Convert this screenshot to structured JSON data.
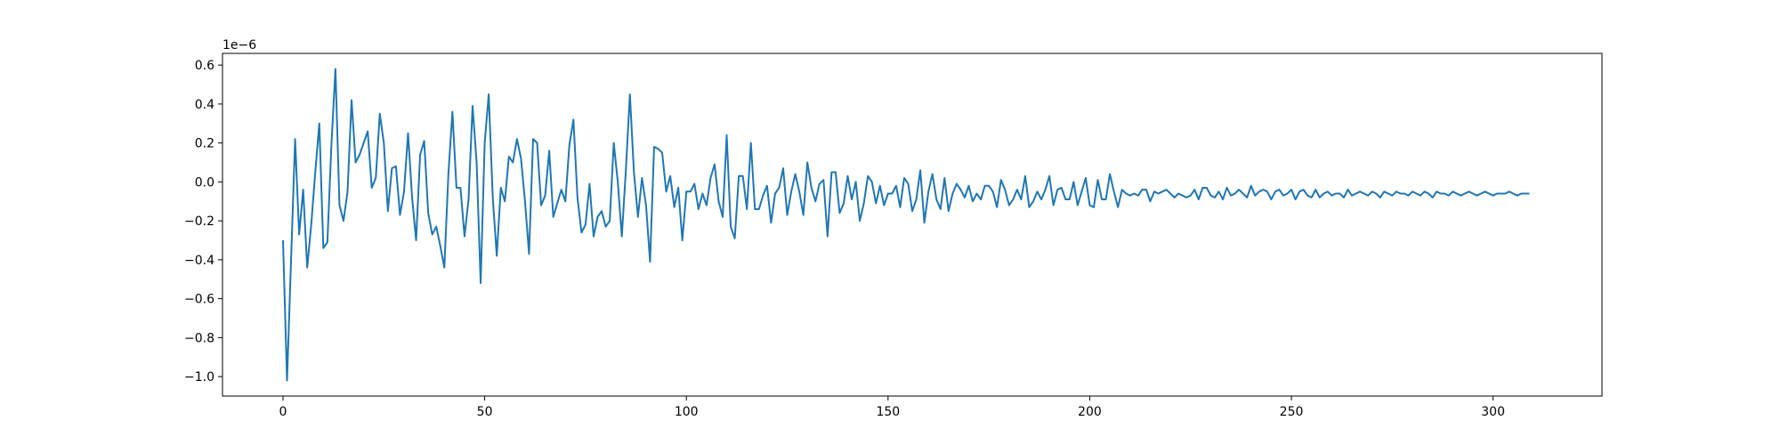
{
  "chart_data": {
    "type": "line",
    "title": "",
    "xlabel": "",
    "ylabel": "",
    "y_scale_note": "1e−6",
    "xlim": [
      -15,
      327
    ],
    "ylim": [
      -1.1,
      0.66
    ],
    "x_ticks": [
      0,
      50,
      100,
      150,
      200,
      250,
      300
    ],
    "y_ticks": [
      -1.0,
      -0.8,
      -0.6,
      -0.4,
      -0.2,
      0.0,
      0.2,
      0.4,
      0.6
    ],
    "y_tick_labels": [
      "−1.0",
      "−0.8",
      "−0.6",
      "−0.4",
      "−0.2",
      "0.0",
      "0.2",
      "0.4",
      "0.6"
    ],
    "grid": false,
    "legend": "none",
    "series": [
      {
        "color": "#1f77b4",
        "x_start": 0,
        "x_step": 1,
        "values": [
          -0.3,
          -1.02,
          -0.4,
          0.22,
          -0.27,
          -0.04,
          -0.44,
          -0.22,
          0.05,
          0.3,
          -0.34,
          -0.31,
          0.19,
          0.58,
          -0.12,
          -0.2,
          -0.05,
          0.42,
          0.1,
          0.14,
          0.2,
          0.26,
          -0.03,
          0.02,
          0.35,
          0.2,
          -0.15,
          0.07,
          0.08,
          -0.17,
          -0.05,
          0.25,
          -0.08,
          -0.3,
          0.14,
          0.21,
          -0.16,
          -0.27,
          -0.23,
          -0.33,
          -0.44,
          0.04,
          0.36,
          -0.03,
          -0.03,
          -0.28,
          -0.09,
          0.39,
          0.1,
          -0.52,
          0.2,
          0.45,
          -0.08,
          -0.38,
          -0.03,
          -0.1,
          0.13,
          0.1,
          0.22,
          0.12,
          -0.1,
          -0.37,
          0.22,
          0.2,
          -0.12,
          -0.07,
          0.16,
          -0.18,
          -0.11,
          -0.04,
          -0.1,
          0.19,
          0.32,
          -0.08,
          -0.26,
          -0.22,
          -0.01,
          -0.28,
          -0.18,
          -0.15,
          -0.23,
          -0.2,
          0.2,
          0.0,
          -0.28,
          0.06,
          0.45,
          0.05,
          -0.18,
          0.02,
          -0.12,
          -0.41,
          0.18,
          0.17,
          0.15,
          -0.05,
          0.03,
          -0.13,
          -0.03,
          -0.3,
          -0.05,
          -0.05,
          -0.01,
          -0.14,
          -0.06,
          -0.12,
          0.02,
          0.09,
          -0.1,
          -0.18,
          0.24,
          -0.23,
          -0.29,
          0.03,
          0.03,
          -0.14,
          0.2,
          -0.14,
          -0.14,
          -0.07,
          -0.02,
          -0.21,
          -0.06,
          -0.03,
          0.07,
          -0.17,
          -0.05,
          0.04,
          -0.05,
          -0.17,
          0.1,
          -0.03,
          -0.1,
          -0.01,
          0.01,
          -0.28,
          0.05,
          0.05,
          -0.16,
          -0.11,
          0.03,
          -0.09,
          0.0,
          -0.2,
          -0.11,
          0.03,
          0.0,
          -0.11,
          -0.02,
          -0.12,
          -0.06,
          -0.06,
          -0.02,
          -0.13,
          0.02,
          -0.01,
          -0.15,
          -0.09,
          0.06,
          -0.21,
          -0.05,
          0.04,
          -0.09,
          -0.14,
          0.02,
          -0.15,
          -0.06,
          -0.01,
          -0.04,
          -0.08,
          -0.02,
          -0.1,
          -0.06,
          -0.09,
          -0.02,
          -0.02,
          -0.05,
          -0.13,
          0.01,
          -0.04,
          -0.12,
          -0.09,
          -0.04,
          -0.09,
          0.03,
          -0.13,
          -0.1,
          -0.05,
          -0.09,
          -0.04,
          0.03,
          -0.12,
          -0.04,
          -0.03,
          -0.09,
          -0.09,
          0.0,
          -0.12,
          -0.05,
          0.02,
          -0.12,
          -0.13,
          0.01,
          -0.09,
          -0.09,
          0.04,
          -0.05,
          -0.13,
          -0.04,
          -0.06,
          -0.07,
          -0.06,
          -0.07,
          -0.04,
          -0.04,
          -0.1,
          -0.05,
          -0.06,
          -0.05,
          -0.04,
          -0.06,
          -0.08,
          -0.06,
          -0.07,
          -0.08,
          -0.07,
          -0.04,
          -0.09,
          -0.03,
          -0.03,
          -0.07,
          -0.08,
          -0.05,
          -0.09,
          -0.03,
          -0.07,
          -0.06,
          -0.04,
          -0.06,
          -0.08,
          -0.02,
          -0.07,
          -0.05,
          -0.04,
          -0.05,
          -0.09,
          -0.05,
          -0.04,
          -0.07,
          -0.06,
          -0.04,
          -0.09,
          -0.05,
          -0.04,
          -0.07,
          -0.08,
          -0.04,
          -0.08,
          -0.06,
          -0.05,
          -0.07,
          -0.06,
          -0.06,
          -0.08,
          -0.04,
          -0.07,
          -0.06,
          -0.05,
          -0.06,
          -0.07,
          -0.05,
          -0.06,
          -0.08,
          -0.05,
          -0.06,
          -0.07,
          -0.05,
          -0.06,
          -0.06,
          -0.07,
          -0.05,
          -0.06,
          -0.07,
          -0.05,
          -0.06,
          -0.08,
          -0.05,
          -0.06,
          -0.06,
          -0.07,
          -0.05,
          -0.06,
          -0.07,
          -0.06,
          -0.05,
          -0.06,
          -0.07,
          -0.06,
          -0.05,
          -0.06,
          -0.07,
          -0.06,
          -0.06,
          -0.06,
          -0.05,
          -0.06,
          -0.07,
          -0.06,
          -0.06,
          -0.06
        ]
      }
    ]
  }
}
